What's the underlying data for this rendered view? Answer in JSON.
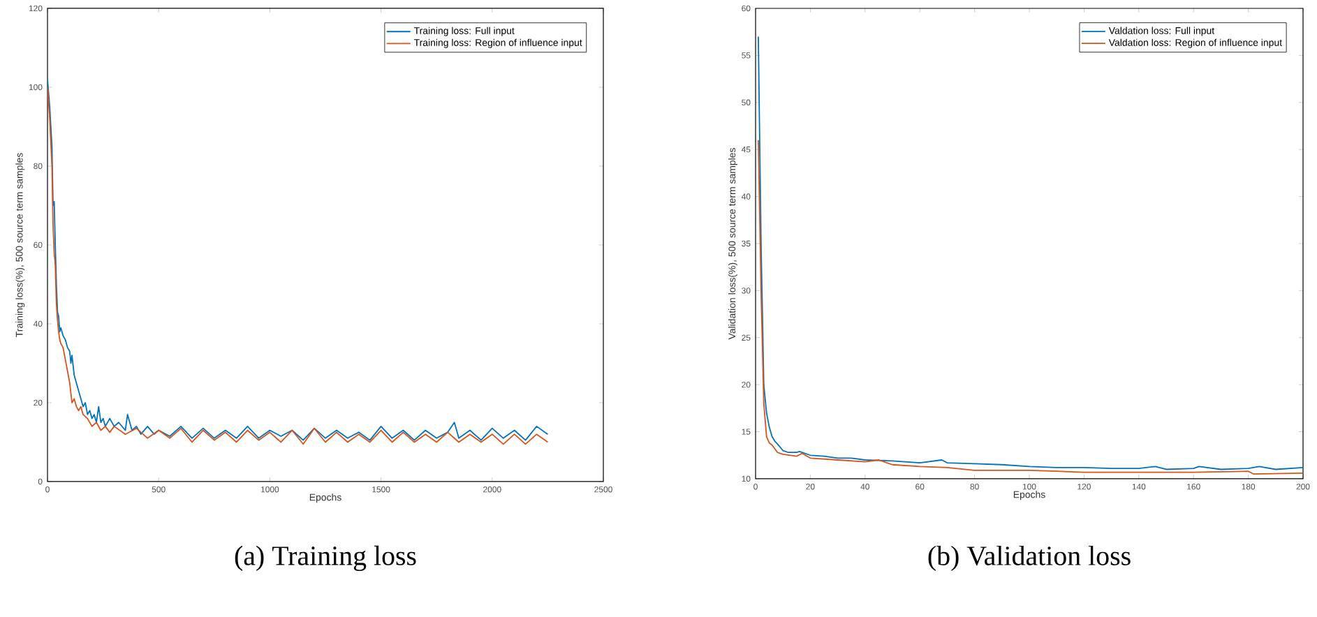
{
  "chart_data": [
    {
      "type": "line",
      "title": "(a) Training loss",
      "xlabel": "Epochs",
      "ylabel": "Training loss(%), 500 source term samples",
      "xlim": [
        0,
        2500
      ],
      "ylim": [
        0,
        120
      ],
      "xticks": [
        0,
        500,
        1000,
        1500,
        2000,
        2500
      ],
      "yticks": [
        0,
        20,
        40,
        60,
        80,
        100,
        120
      ],
      "legend": "top right",
      "grid": false,
      "series": [
        {
          "name": "Training loss: Full input",
          "color": "#0072bd",
          "x": [
            0,
            10,
            20,
            25,
            30,
            35,
            40,
            45,
            50,
            55,
            60,
            70,
            80,
            90,
            100,
            105,
            110,
            120,
            130,
            140,
            150,
            160,
            170,
            180,
            190,
            200,
            210,
            220,
            230,
            240,
            250,
            260,
            280,
            300,
            320,
            350,
            360,
            380,
            400,
            420,
            450,
            480,
            500,
            550,
            600,
            650,
            700,
            750,
            800,
            850,
            900,
            950,
            1000,
            1050,
            1100,
            1150,
            1200,
            1250,
            1300,
            1350,
            1400,
            1450,
            1500,
            1550,
            1600,
            1650,
            1700,
            1750,
            1800,
            1830,
            1850,
            1900,
            1950,
            2000,
            2050,
            2100,
            2150,
            2200,
            2250
          ],
          "values": [
            102,
            95,
            85,
            70,
            71,
            60,
            50,
            43,
            42,
            38,
            39,
            37,
            36,
            34,
            33,
            30,
            32,
            27,
            25,
            23,
            21,
            19,
            20,
            17,
            18,
            16,
            17,
            15,
            19,
            15,
            16,
            14,
            16,
            14,
            15,
            13,
            17,
            13,
            14,
            12,
            14,
            12,
            13,
            11.5,
            14,
            11,
            13.5,
            11,
            13,
            11,
            14,
            11,
            13,
            11.5,
            13,
            10.5,
            13.5,
            11,
            13,
            11,
            12.5,
            10.5,
            14,
            11,
            13,
            10.5,
            13,
            11,
            12.5,
            15,
            11,
            13,
            10.5,
            13.5,
            11,
            13,
            10.5,
            14,
            12
          ]
        },
        {
          "name": "Training loss: Region of influence input",
          "color": "#d95319",
          "x": [
            0,
            10,
            20,
            25,
            30,
            35,
            40,
            45,
            50,
            55,
            60,
            70,
            80,
            90,
            100,
            110,
            120,
            130,
            140,
            150,
            160,
            180,
            200,
            220,
            240,
            260,
            280,
            300,
            350,
            400,
            450,
            500,
            550,
            600,
            650,
            700,
            750,
            800,
            850,
            900,
            950,
            1000,
            1050,
            1100,
            1150,
            1200,
            1250,
            1300,
            1350,
            1400,
            1450,
            1500,
            1550,
            1600,
            1650,
            1700,
            1750,
            1800,
            1850,
            1900,
            1950,
            2000,
            2050,
            2100,
            2150,
            2200,
            2250
          ],
          "values": [
            100,
            92,
            80,
            65,
            58,
            55,
            45,
            41,
            38,
            36,
            35,
            34,
            31,
            28,
            25,
            20,
            21,
            19,
            18,
            19,
            17,
            16,
            14,
            15,
            13,
            14,
            12.5,
            14,
            12,
            13.5,
            11,
            13,
            11,
            13.5,
            10,
            13,
            10.5,
            12.5,
            10,
            13,
            10.5,
            12.5,
            10,
            13,
            9.5,
            13.5,
            10,
            12.5,
            10,
            12,
            10,
            13,
            10,
            12.5,
            10,
            12,
            10,
            12.5,
            10,
            12,
            10,
            12,
            9.5,
            12,
            9.5,
            12,
            10
          ]
        }
      ]
    },
    {
      "type": "line",
      "title": "(b) Validation loss",
      "xlabel": "Epochs",
      "ylabel": "Validation loss(%), 500 source term samples",
      "xlim": [
        0,
        200
      ],
      "ylim": [
        10,
        60
      ],
      "xticks": [
        0,
        20,
        40,
        60,
        80,
        100,
        120,
        140,
        160,
        180,
        200
      ],
      "yticks": [
        10,
        15,
        20,
        25,
        30,
        35,
        40,
        45,
        50,
        55,
        60
      ],
      "legend": "top right",
      "grid": false,
      "series": [
        {
          "name": "Valdation loss: Full input",
          "color": "#0072bd",
          "x": [
            1,
            2,
            3,
            4,
            5,
            6,
            7,
            8,
            10,
            12,
            15,
            16,
            20,
            25,
            30,
            35,
            40,
            50,
            60,
            68,
            70,
            80,
            90,
            100,
            110,
            120,
            130,
            140,
            146,
            150,
            160,
            162,
            170,
            180,
            184,
            190,
            200
          ],
          "values": [
            57,
            35,
            20,
            17,
            15.5,
            14.5,
            14,
            13.7,
            13,
            12.8,
            12.8,
            12.9,
            12.5,
            12.4,
            12.2,
            12.2,
            12,
            11.9,
            11.7,
            12,
            11.7,
            11.6,
            11.5,
            11.3,
            11.2,
            11.2,
            11.1,
            11.1,
            11.3,
            11,
            11.1,
            11.3,
            11,
            11.1,
            11.3,
            11,
            11.2
          ]
        },
        {
          "name": "Valdation loss: Region of influence input",
          "color": "#d95319",
          "x": [
            1,
            2,
            3,
            4,
            5,
            6,
            8,
            10,
            15,
            17,
            20,
            30,
            40,
            45,
            50,
            60,
            70,
            80,
            90,
            100,
            110,
            120,
            140,
            160,
            180,
            182,
            200
          ],
          "values": [
            46,
            30,
            18,
            14.5,
            13.8,
            13.6,
            12.8,
            12.6,
            12.4,
            12.7,
            12.2,
            12,
            11.8,
            12,
            11.5,
            11.3,
            11.2,
            10.9,
            10.9,
            10.9,
            10.8,
            10.7,
            10.7,
            10.7,
            10.8,
            10.5,
            10.6
          ]
        }
      ]
    }
  ]
}
